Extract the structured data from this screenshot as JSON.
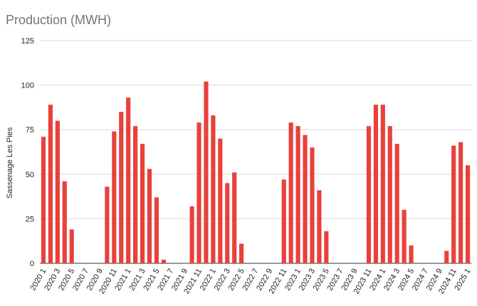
{
  "chart_data": {
    "type": "bar",
    "title": "Production (MWH)",
    "xlabel": "",
    "ylabel": "Sassenage Les Pies",
    "ylim": [
      0,
      125
    ],
    "yticks": [
      0,
      25,
      50,
      75,
      100,
      125
    ],
    "grid": true,
    "legend": "none",
    "bar_color": "#e8413b",
    "categories": [
      "2020 1",
      "2020 2",
      "2020 3",
      "2020 4",
      "2020 5",
      "2020 6",
      "2020 7",
      "2020 8",
      "2020 9",
      "2020 10",
      "2020 11",
      "2020 12",
      "2021 1",
      "2021 2",
      "2021 3",
      "2021 4",
      "2021 5",
      "2021 6",
      "2021 7",
      "2021 8",
      "2021 9",
      "2021 10",
      "2021 11",
      "2021 12",
      "2022 1",
      "2022 2",
      "2022 3",
      "2022 4",
      "2022 5",
      "2022 6",
      "2022 7",
      "2022 8",
      "2022 9",
      "2022 10",
      "2022 11",
      "2022 12",
      "2023 1",
      "2023 2",
      "2023 3",
      "2023 4",
      "2023 5",
      "2023 6",
      "2023 7",
      "2023 8",
      "2023 9",
      "2023 10",
      "2023 11",
      "2023 12",
      "2024 1",
      "2024 2",
      "2024 3",
      "2024 4",
      "2024 5",
      "2024 6",
      "2024 7",
      "2024 8",
      "2024 9",
      "2024 10",
      "2024 11",
      "2024 12",
      "2025 1"
    ],
    "shown_tick_labels": [
      "2020 1",
      "2020 3",
      "2020 5",
      "2020 7",
      "2020 9",
      "2020 11",
      "2021 1",
      "2021 3",
      "2021 5",
      "2021 7",
      "2021 9",
      "2021 11",
      "2022 1",
      "2022 3",
      "2022 5",
      "2022 7",
      "2022 9",
      "2022 11",
      "2023 1",
      "2023 3",
      "2023 5",
      "2023 7",
      "2023 9",
      "2023 11",
      "2024 1",
      "2024 3",
      "2024 5",
      "2024 7",
      "2024 9",
      "2024 11",
      "2025 1"
    ],
    "values": [
      71,
      89,
      80,
      46,
      19,
      0,
      0,
      0,
      0,
      43,
      74,
      85,
      93,
      77,
      67,
      53,
      37,
      2,
      0,
      0,
      0,
      32,
      79,
      102,
      83,
      70,
      45,
      51,
      11,
      0,
      0,
      0,
      0,
      0,
      47,
      79,
      77,
      72,
      65,
      41,
      18,
      0,
      0,
      0,
      0,
      0,
      77,
      89,
      89,
      77,
      67,
      30,
      10,
      0,
      0,
      0,
      0,
      7,
      66,
      68,
      55
    ]
  }
}
